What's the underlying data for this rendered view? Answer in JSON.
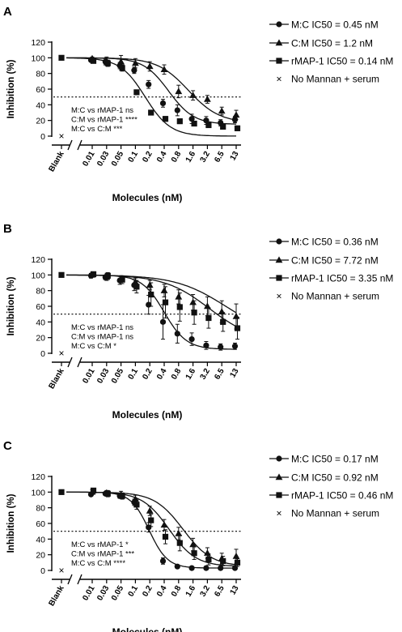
{
  "chart_data": [
    {
      "panel": "A",
      "type": "line",
      "xlabel": "Molecules (nM)",
      "ylabel": "Inhibition (%)",
      "x_categories": [
        "0.01",
        "0.03",
        "0.05",
        "0.1",
        "0.2",
        "0.4",
        "0.8",
        "1.6",
        "3.2",
        "6.5",
        "13"
      ],
      "yticks": [
        "0",
        "20",
        "40",
        "60",
        "80",
        "100",
        "120"
      ],
      "ylim": [
        0,
        120
      ],
      "blank_label": "Blank",
      "reference_line": 50,
      "blank": {
        "value": 100,
        "no_mannan_serum": 0
      },
      "series": [
        {
          "name": "M:C IC50 = 0.45 nM",
          "marker": "circle",
          "ic50": 0.45,
          "hill": 1.6,
          "bottom": 15,
          "values": [
            97,
            95,
            90,
            84,
            66,
            42,
            33,
            22,
            20,
            17,
            21
          ],
          "errors": [
            2,
            4,
            4,
            4,
            5,
            5,
            7,
            6,
            5,
            4,
            4
          ]
        },
        {
          "name": "C:M IC50 = 1.2 nM",
          "marker": "triangle",
          "ic50": 1.2,
          "hill": 1.3,
          "bottom": 17,
          "values": [
            99,
            96,
            95,
            93,
            89,
            85,
            57,
            52,
            47,
            32,
            27
          ],
          "errors": [
            2,
            5,
            8,
            6,
            6,
            6,
            8,
            6,
            5,
            5,
            6
          ]
        },
        {
          "name": "rMAP-1 IC50 = 0.14 nM",
          "marker": "square",
          "ic50": 0.14,
          "hill": 1.6,
          "bottom": 0,
          "values": [
            96,
            93,
            87,
            56,
            30,
            22,
            19,
            16,
            14,
            12,
            10
          ],
          "errors": [
            2,
            4,
            4,
            3,
            3,
            3,
            3,
            3,
            3,
            3,
            3
          ]
        }
      ],
      "legend_extra": "No Mannan + serum",
      "stats": [
        "M:C vs rMAP-1 ns",
        "C:M vs rMAP-1 ****",
        "M:C vs C:M ***"
      ]
    },
    {
      "panel": "B",
      "type": "line",
      "xlabel": "Molecules (nM)",
      "ylabel": "Inhibition (%)",
      "x_categories": [
        "0.01",
        "0.03",
        "0.05",
        "0.1",
        "0.2",
        "0.4",
        "0.8",
        "1.6",
        "3.2",
        "6.5",
        "13"
      ],
      "yticks": [
        "0",
        "20",
        "40",
        "60",
        "80",
        "100",
        "120"
      ],
      "ylim": [
        0,
        120
      ],
      "blank_label": "Blank",
      "reference_line": 50,
      "blank": {
        "value": 100,
        "no_mannan_serum": 0
      },
      "series": [
        {
          "name": "M:C IC50 = 0.36 nM",
          "marker": "circle",
          "ic50": 0.36,
          "hill": 1.8,
          "bottom": 5,
          "values": [
            99,
            97,
            93,
            87,
            62,
            40,
            25,
            18,
            10,
            8,
            9
          ],
          "errors": [
            3,
            3,
            5,
            7,
            12,
            22,
            12,
            8,
            5,
            4,
            4
          ]
        },
        {
          "name": "C:M IC50 = 7.72 nM",
          "marker": "triangle",
          "ic50": 7.72,
          "hill": 0.8,
          "bottom": 20,
          "values": [
            100,
            97,
            95,
            91,
            87,
            80,
            72,
            65,
            60,
            53,
            47
          ],
          "errors": [
            3,
            4,
            4,
            5,
            6,
            8,
            9,
            10,
            12,
            14,
            16
          ]
        },
        {
          "name": "rMAP-1 IC50 = 3.35 nM",
          "marker": "square",
          "ic50": 3.35,
          "hill": 0.9,
          "bottom": 15,
          "values": [
            101,
            99,
            94,
            85,
            75,
            65,
            59,
            52,
            45,
            40,
            32
          ],
          "errors": [
            3,
            4,
            5,
            8,
            15,
            20,
            18,
            15,
            13,
            12,
            14
          ]
        }
      ],
      "legend_extra": "No Mannan + serum",
      "stats": [
        "M:C vs rMAP-1 ns",
        "C:M vs rMAP-1 ns",
        "M:C vs C:M *"
      ]
    },
    {
      "panel": "C",
      "type": "line",
      "xlabel": "Molecules (nM)",
      "ylabel": "Inhibition (%)",
      "x_categories": [
        "0.01",
        "0.03",
        "0.05",
        "0.1",
        "0.2",
        "0.4",
        "0.8",
        "1.6",
        "3.2",
        "6.5",
        "13"
      ],
      "yticks": [
        "0",
        "20",
        "40",
        "60",
        "80",
        "100",
        "120"
      ],
      "ylim": [
        0,
        120
      ],
      "blank_label": "Blank",
      "reference_line": 50,
      "blank": {
        "value": 100,
        "no_mannan_serum": 0
      },
      "series": [
        {
          "name": "M:C IC50 = 0.17 nM",
          "marker": "circle",
          "ic50": 0.17,
          "hill": 2.2,
          "bottom": 3,
          "values": [
            97,
            98,
            95,
            87,
            55,
            12,
            5,
            3,
            3,
            3,
            3
          ],
          "errors": [
            2,
            2,
            3,
            4,
            6,
            4,
            2,
            2,
            2,
            2,
            2
          ]
        },
        {
          "name": "C:M IC50 = 0.92 nM",
          "marker": "triangle",
          "ic50": 0.92,
          "hill": 1.4,
          "bottom": 5,
          "values": [
            100,
            99,
            97,
            91,
            76,
            58,
            47,
            33,
            22,
            15,
            18
          ],
          "errors": [
            3,
            3,
            4,
            5,
            6,
            7,
            8,
            8,
            7,
            7,
            9
          ]
        },
        {
          "name": "rMAP-1 IC50 = 0.46 nM",
          "marker": "square",
          "ic50": 0.46,
          "hill": 1.5,
          "bottom": 5,
          "values": [
            102,
            98,
            95,
            84,
            64,
            43,
            35,
            22,
            14,
            12,
            10
          ],
          "errors": [
            3,
            4,
            4,
            6,
            8,
            9,
            10,
            8,
            7,
            6,
            5
          ]
        }
      ],
      "legend_extra": "No Mannan + serum",
      "stats": [
        "M:C vs rMAP-1 *",
        "C:M vs rMAP-1 ***",
        "M:C vs C:M ****"
      ]
    }
  ]
}
